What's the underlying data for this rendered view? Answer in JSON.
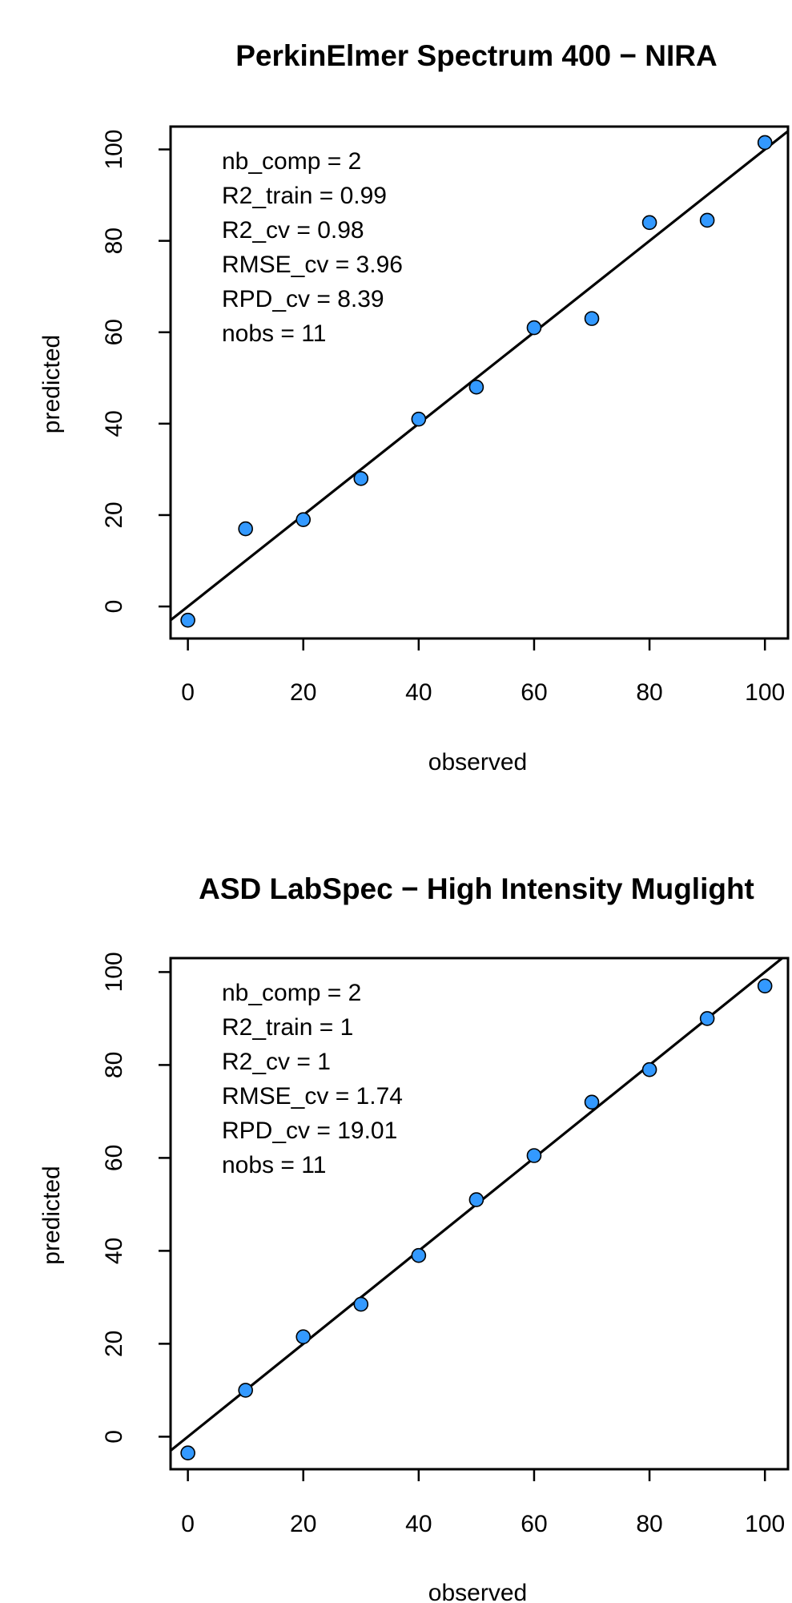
{
  "chart_data": [
    {
      "type": "scatter",
      "title": "PerkinElmer Spectrum 400 − NIRA",
      "xlabel": "observed",
      "ylabel": "predicted",
      "xlim": [
        -3,
        104
      ],
      "ylim": [
        -7,
        105
      ],
      "x_ticks": [
        0,
        20,
        40,
        60,
        80,
        100
      ],
      "y_ticks": [
        0,
        20,
        40,
        60,
        80,
        100
      ],
      "grid": false,
      "point_color": "#3399ff",
      "stats": [
        "nb_comp = 2",
        "R2_train = 0.99",
        "R2_cv = 0.98",
        "RMSE_cv = 3.96",
        "RPD_cv = 8.39",
        "nobs = 11"
      ],
      "fit_line": {
        "intercept": 0,
        "slope": 1.0
      },
      "series": [
        {
          "x": [
            0,
            10,
            20,
            30,
            40,
            50,
            60,
            70,
            80,
            90,
            100
          ],
          "y": [
            -3,
            17,
            19,
            28,
            41,
            48,
            61,
            63,
            84,
            84.5,
            101.5
          ]
        }
      ]
    },
    {
      "type": "scatter",
      "title": "ASD LabSpec − High Intensity Muglight",
      "xlabel": "observed",
      "ylabel": "predicted",
      "xlim": [
        -3,
        104
      ],
      "ylim": [
        -7,
        103
      ],
      "x_ticks": [
        0,
        20,
        40,
        60,
        80,
        100
      ],
      "y_ticks": [
        0,
        20,
        40,
        60,
        80,
        100
      ],
      "grid": false,
      "point_color": "#3399ff",
      "stats": [
        "nb_comp = 2",
        "R2_train = 1",
        "R2_cv = 1",
        "RMSE_cv = 1.74",
        "RPD_cv = 19.01",
        "nobs = 11"
      ],
      "fit_line": {
        "intercept": 0,
        "slope": 1.0
      },
      "series": [
        {
          "x": [
            0,
            10,
            20,
            30,
            40,
            50,
            60,
            70,
            80,
            90,
            100
          ],
          "y": [
            -3.5,
            10,
            21.5,
            28.5,
            39,
            51,
            60.5,
            72,
            79,
            90,
            97
          ]
        }
      ]
    }
  ]
}
